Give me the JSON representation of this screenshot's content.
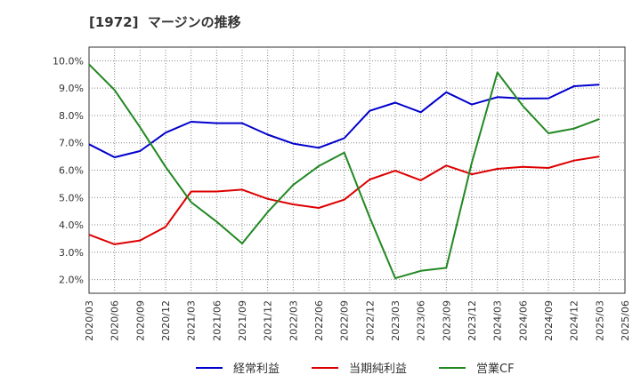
{
  "chart_data": {
    "type": "line",
    "title": "[1972]  マージンの推移",
    "x": [
      "2020/03",
      "2020/06",
      "2020/09",
      "2020/12",
      "2021/03",
      "2021/06",
      "2021/09",
      "2021/12",
      "2022/03",
      "2022/06",
      "2022/09",
      "2022/12",
      "2023/03",
      "2023/06",
      "2023/09",
      "2023/12",
      "2024/03",
      "2024/06",
      "2024/09",
      "2024/12",
      "2025/03",
      "2025/06"
    ],
    "ylim": [
      1.5,
      10.5
    ],
    "yticks": [
      2.0,
      3.0,
      4.0,
      5.0,
      6.0,
      7.0,
      8.0,
      9.0,
      10.0
    ],
    "ytick_labels": [
      "2.0%",
      "3.0%",
      "4.0%",
      "5.0%",
      "6.0%",
      "7.0%",
      "8.0%",
      "9.0%",
      "10.0%"
    ],
    "grid": true,
    "legend_position": "bottom",
    "series": [
      {
        "name": "経常利益",
        "color": "#0000cc",
        "values": [
          6.95,
          6.47,
          6.7,
          7.37,
          7.77,
          7.72,
          7.72,
          7.3,
          6.97,
          6.82,
          7.17,
          8.17,
          8.47,
          8.12,
          8.85,
          8.4,
          8.67,
          8.62,
          8.63,
          9.07,
          9.13,
          null
        ]
      },
      {
        "name": "当期純利益",
        "color": "#dd0000",
        "values": [
          3.64,
          3.29,
          3.43,
          3.93,
          5.22,
          5.22,
          5.29,
          4.95,
          4.75,
          4.62,
          4.92,
          5.66,
          5.98,
          5.63,
          6.17,
          5.85,
          6.05,
          6.12,
          6.08,
          6.35,
          6.5,
          null
        ]
      },
      {
        "name": "営業CF",
        "color": "#228822",
        "values": [
          9.87,
          8.93,
          7.57,
          6.12,
          4.83,
          4.12,
          3.32,
          4.47,
          5.46,
          6.15,
          6.64,
          4.27,
          2.05,
          2.32,
          2.43,
          6.28,
          9.57,
          8.35,
          7.35,
          7.52,
          7.87,
          null
        ]
      }
    ]
  }
}
